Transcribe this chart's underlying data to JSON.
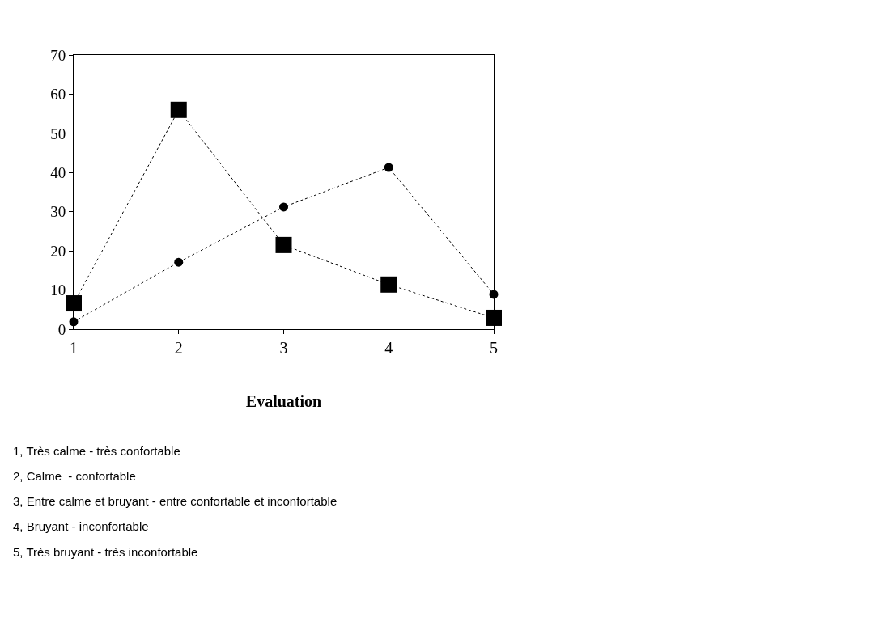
{
  "chart_data": {
    "type": "line",
    "xlabel": "Evaluation",
    "x": [
      1,
      2,
      3,
      4,
      5
    ],
    "series": [
      {
        "color": "#000000",
        "marker": "square",
        "values": [
          6.6,
          56,
          21.5,
          11.4,
          2.9
        ]
      },
      {
        "color": "#000000",
        "marker": "circle",
        "values": [
          1.9,
          17.1,
          31.2,
          41.3,
          8.9
        ]
      }
    ],
    "line_style": "dotted",
    "xlim": [
      1,
      5
    ],
    "xticks": [
      1,
      2,
      3,
      4,
      5
    ],
    "ylim": [
      0,
      70
    ],
    "yticks": [
      0,
      10,
      20,
      30,
      40,
      50,
      60,
      70
    ],
    "annotations": [
      "1, Très calme - très confortable",
      "2, Calme  - confortable",
      "3, Entre calme et bruyant - entre confortable et inconfortable",
      "4, Bruyant - inconfortable",
      "5, Très bruyant - très inconfortable"
    ]
  }
}
